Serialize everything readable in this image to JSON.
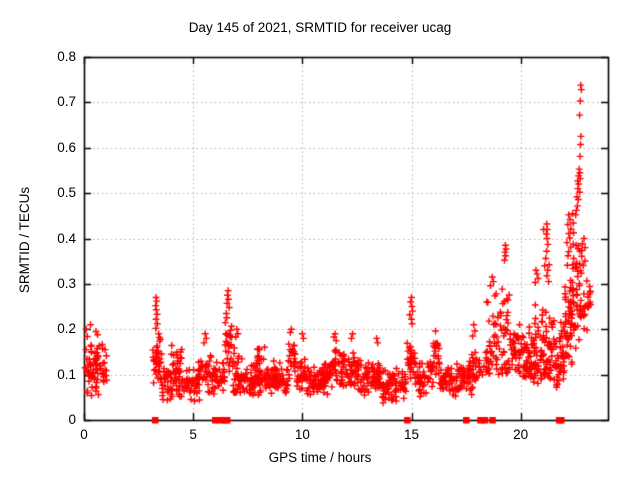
{
  "chart_data": {
    "type": "scatter",
    "title": "Day 145 of 2021, SRMTID for receiver ucag",
    "xlabel": "GPS time / hours",
    "ylabel": "SRMTID / TECUs",
    "xlim": [
      0,
      24
    ],
    "ylim": [
      0,
      0.8
    ],
    "x_ticks": [
      {
        "v": 0,
        "label": "0"
      },
      {
        "v": 5,
        "label": "5"
      },
      {
        "v": 10,
        "label": "10"
      },
      {
        "v": 15,
        "label": "15"
      },
      {
        "v": 20,
        "label": "20"
      }
    ],
    "y_ticks": [
      {
        "v": 0,
        "label": "0"
      },
      {
        "v": 0.1,
        "label": "0.1"
      },
      {
        "v": 0.2,
        "label": "0.2"
      },
      {
        "v": 0.3,
        "label": "0.3"
      },
      {
        "v": 0.4,
        "label": "0.4"
      },
      {
        "v": 0.5,
        "label": "0.5"
      },
      {
        "v": 0.6,
        "label": "0.6"
      },
      {
        "v": 0.7,
        "label": "0.7"
      },
      {
        "v": 0.8,
        "label": "0.8"
      }
    ],
    "grid": {
      "show": true,
      "style": "dotted",
      "color": "#b3b3b3"
    },
    "border_color": "#000000",
    "background": "#ffffff",
    "series": [
      {
        "name": "srmtid-points",
        "marker": "plus",
        "color": "#ff0000",
        "seed": 145,
        "clusters": [
          {
            "x": [
              0.02,
              1.05
            ],
            "y": [
              0.05,
              0.18
            ],
            "n": 75,
            "skew": "mid"
          },
          {
            "x": [
              3.15,
              3.6
            ],
            "y": [
              0.06,
              0.19
            ],
            "n": 32,
            "skew": "mid"
          },
          {
            "x": [
              3.5,
              5.3
            ],
            "y": [
              0.035,
              0.125
            ],
            "n": 100,
            "skew": "mid"
          },
          {
            "x": [
              3.9,
              4.5
            ],
            "y": [
              0.1,
              0.175
            ],
            "n": 18,
            "skew": "mid"
          },
          {
            "x": [
              5.25,
              5.95
            ],
            "y": [
              0.05,
              0.155
            ],
            "n": 40,
            "skew": "mid"
          },
          {
            "x": [
              5.95,
              6.45
            ],
            "y": [
              0.05,
              0.14
            ],
            "n": 30,
            "skew": "mid"
          },
          {
            "x": [
              6.45,
              6.8
            ],
            "y": [
              0.1,
              0.24
            ],
            "n": 26,
            "skew": "mid"
          },
          {
            "x": [
              6.8,
              7.3
            ],
            "y": [
              0.06,
              0.17
            ],
            "n": 40,
            "skew": "low"
          },
          {
            "x": [
              7.3,
              9.35
            ],
            "y": [
              0.05,
              0.135
            ],
            "n": 140,
            "skew": "mid"
          },
          {
            "x": [
              7.9,
              8.3
            ],
            "y": [
              0.11,
              0.168
            ],
            "n": 10,
            "skew": "mid"
          },
          {
            "x": [
              9.35,
              9.7
            ],
            "y": [
              0.08,
              0.185
            ],
            "n": 22,
            "skew": "mid"
          },
          {
            "x": [
              9.7,
              10.2
            ],
            "y": [
              0.06,
              0.15
            ],
            "n": 30,
            "skew": "mid"
          },
          {
            "x": [
              10.2,
              11.2
            ],
            "y": [
              0.05,
              0.13
            ],
            "n": 75,
            "skew": "mid"
          },
          {
            "x": [
              11.2,
              11.7
            ],
            "y": [
              0.07,
              0.16
            ],
            "n": 34,
            "skew": "mid"
          },
          {
            "x": [
              11.7,
              12.6
            ],
            "y": [
              0.06,
              0.155
            ],
            "n": 60,
            "skew": "mid"
          },
          {
            "x": [
              12.6,
              13.6
            ],
            "y": [
              0.05,
              0.135
            ],
            "n": 68,
            "skew": "mid"
          },
          {
            "x": [
              13.6,
              14.75
            ],
            "y": [
              0.035,
              0.115
            ],
            "n": 70,
            "skew": "mid"
          },
          {
            "x": [
              14.8,
              15.15
            ],
            "y": [
              0.08,
              0.2
            ],
            "n": 26,
            "skew": "mid"
          },
          {
            "x": [
              15.15,
              16.0
            ],
            "y": [
              0.05,
              0.145
            ],
            "n": 52,
            "skew": "mid"
          },
          {
            "x": [
              16.0,
              16.3
            ],
            "y": [
              0.07,
              0.185
            ],
            "n": 22,
            "skew": "mid"
          },
          {
            "x": [
              16.3,
              17.45
            ],
            "y": [
              0.05,
              0.13
            ],
            "n": 68,
            "skew": "mid"
          },
          {
            "x": [
              17.5,
              18.0
            ],
            "y": [
              0.05,
              0.155
            ],
            "n": 38,
            "skew": "mid"
          },
          {
            "x": [
              18.05,
              18.35
            ],
            "y": [
              0.08,
              0.14
            ],
            "n": 8,
            "skew": "mid"
          },
          {
            "x": [
              18.4,
              19.0
            ],
            "y": [
              0.1,
              0.3
            ],
            "n": 42,
            "skew": "low"
          },
          {
            "x": [
              19.0,
              19.55
            ],
            "y": [
              0.1,
              0.33
            ],
            "n": 38,
            "skew": "low"
          },
          {
            "x": [
              19.55,
              20.1
            ],
            "y": [
              0.09,
              0.2
            ],
            "n": 34,
            "skew": "mid"
          },
          {
            "x": [
              20.1,
              20.55
            ],
            "y": [
              0.09,
              0.24
            ],
            "n": 40,
            "skew": "low"
          },
          {
            "x": [
              20.55,
              21.0
            ],
            "y": [
              0.08,
              0.28
            ],
            "n": 42,
            "skew": "low"
          },
          {
            "x": [
              21.0,
              21.5
            ],
            "y": [
              0.09,
              0.27
            ],
            "n": 45,
            "skew": "low"
          },
          {
            "x": [
              21.5,
              22.0
            ],
            "y": [
              0.07,
              0.25
            ],
            "n": 48,
            "skew": "low"
          },
          {
            "x": [
              22.0,
              22.35
            ],
            "y": [
              0.06,
              0.36
            ],
            "n": 42,
            "skew": "mid"
          },
          {
            "x": [
              22.35,
              22.85
            ],
            "y": [
              0.15,
              0.5
            ],
            "n": 55,
            "skew": "mid"
          },
          {
            "x": [
              22.85,
              23.2
            ],
            "y": [
              0.18,
              0.36
            ],
            "n": 22,
            "skew": "mid"
          }
        ],
        "points": [
          [
            0.1,
            0.2
          ],
          [
            0.3,
            0.21
          ],
          [
            0.55,
            0.195
          ],
          [
            0.62,
            0.188
          ],
          [
            0.15,
            0.184
          ],
          [
            3.3,
            0.27
          ],
          [
            3.33,
            0.262
          ],
          [
            3.28,
            0.252
          ],
          [
            3.31,
            0.243
          ],
          [
            3.35,
            0.233
          ],
          [
            3.3,
            0.222
          ],
          [
            3.36,
            0.212
          ],
          [
            3.29,
            0.202
          ],
          [
            3.42,
            0.19
          ],
          [
            3.5,
            0.178
          ],
          [
            5.55,
            0.19
          ],
          [
            5.6,
            0.18
          ],
          [
            5.5,
            0.17
          ],
          [
            6.6,
            0.285
          ],
          [
            6.57,
            0.275
          ],
          [
            6.62,
            0.266
          ],
          [
            6.55,
            0.257
          ],
          [
            6.65,
            0.248
          ],
          [
            7.0,
            0.2
          ],
          [
            7.05,
            0.19
          ],
          [
            6.95,
            0.183
          ],
          [
            9.5,
            0.2
          ],
          [
            9.45,
            0.193
          ],
          [
            10.0,
            0.19
          ],
          [
            10.05,
            0.18
          ],
          [
            11.5,
            0.19
          ],
          [
            11.45,
            0.183
          ],
          [
            11.55,
            0.175
          ],
          [
            12.3,
            0.19
          ],
          [
            12.25,
            0.18
          ],
          [
            13.4,
            0.18
          ],
          [
            13.45,
            0.17
          ],
          [
            15.0,
            0.27
          ],
          [
            14.96,
            0.26
          ],
          [
            15.02,
            0.25
          ],
          [
            15.05,
            0.24
          ],
          [
            14.92,
            0.232
          ],
          [
            15.0,
            0.222
          ],
          [
            15.03,
            0.212
          ],
          [
            16.1,
            0.196
          ],
          [
            17.85,
            0.21
          ],
          [
            17.9,
            0.196
          ],
          [
            17.8,
            0.185
          ],
          [
            18.7,
            0.315
          ],
          [
            18.75,
            0.305
          ],
          [
            18.62,
            0.296
          ],
          [
            19.3,
            0.385
          ],
          [
            19.33,
            0.377
          ],
          [
            19.28,
            0.37
          ],
          [
            19.31,
            0.362
          ],
          [
            19.26,
            0.352
          ],
          [
            19.95,
            0.21
          ],
          [
            20.7,
            0.33
          ],
          [
            20.75,
            0.322
          ],
          [
            20.8,
            0.312
          ],
          [
            20.67,
            0.303
          ],
          [
            21.05,
            0.42
          ],
          [
            21.1,
            0.34
          ],
          [
            21.2,
            0.432
          ],
          [
            21.22,
            0.42
          ],
          [
            21.18,
            0.41
          ],
          [
            21.21,
            0.4
          ],
          [
            21.25,
            0.387
          ],
          [
            21.19,
            0.372
          ],
          [
            21.15,
            0.356
          ],
          [
            21.3,
            0.342
          ],
          [
            21.24,
            0.33
          ],
          [
            21.2,
            0.318
          ],
          [
            21.28,
            0.305
          ],
          [
            22.2,
            0.452
          ],
          [
            22.26,
            0.442
          ],
          [
            22.16,
            0.431
          ],
          [
            22.3,
            0.421
          ],
          [
            22.21,
            0.411
          ],
          [
            22.25,
            0.401
          ],
          [
            22.12,
            0.391
          ],
          [
            22.3,
            0.381
          ],
          [
            22.2,
            0.371
          ],
          [
            22.17,
            0.362
          ],
          [
            22.75,
            0.738
          ],
          [
            22.78,
            0.728
          ],
          [
            22.73,
            0.703
          ],
          [
            22.7,
            0.672
          ],
          [
            22.76,
            0.625
          ],
          [
            22.74,
            0.607
          ],
          [
            22.72,
            0.581
          ],
          [
            22.68,
            0.553
          ],
          [
            22.71,
            0.545
          ],
          [
            22.65,
            0.538
          ],
          [
            22.73,
            0.532
          ],
          [
            22.61,
            0.527
          ],
          [
            22.66,
            0.52
          ],
          [
            22.62,
            0.51
          ],
          [
            22.7,
            0.502
          ],
          [
            22.58,
            0.492
          ],
          [
            22.64,
            0.486
          ],
          [
            22.6,
            0.472
          ],
          [
            22.55,
            0.462
          ],
          [
            22.52,
            0.452
          ],
          [
            22.9,
            0.4
          ],
          [
            22.95,
            0.38
          ]
        ]
      },
      {
        "name": "baseline-flags",
        "marker": "square",
        "color": "#ff0000",
        "y": 0,
        "x_values": [
          3.25,
          6.0,
          6.25,
          6.45,
          6.55,
          14.8,
          17.5,
          18.15,
          18.35,
          18.7,
          21.75,
          21.85
        ]
      }
    ]
  }
}
